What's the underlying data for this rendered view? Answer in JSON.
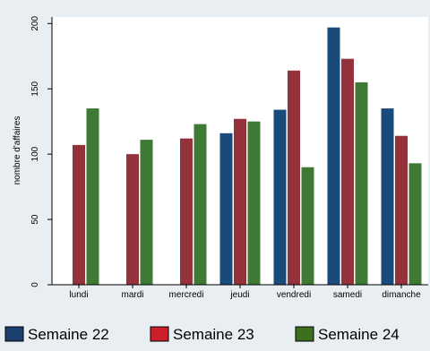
{
  "chart_data": {
    "type": "bar",
    "title": "",
    "xlabel": "",
    "ylabel": "nombre d'affaires",
    "ylim": [
      0,
      205
    ],
    "yticks": [
      0,
      50,
      100,
      150,
      200
    ],
    "categories": [
      "lundi",
      "mardi",
      "mercredi",
      "jeudi",
      "vendredi",
      "samedi",
      "dimanche"
    ],
    "series": [
      {
        "name": "Semaine 22",
        "color": "#1a4a7a",
        "values": [
          null,
          null,
          null,
          116,
          134,
          197,
          135
        ]
      },
      {
        "name": "Semaine 23",
        "color": "#93323b",
        "values": [
          107,
          100,
          112,
          127,
          164,
          173,
          114
        ]
      },
      {
        "name": "Semaine 24",
        "color": "#3e7a34",
        "values": [
          135,
          111,
          123,
          125,
          90,
          155,
          93
        ]
      }
    ],
    "legend": "bottom",
    "grid": false,
    "colors": {
      "background": "#e9eef2",
      "plot_background": "#ffffff",
      "axis": "#000000",
      "legend_swatch_border": "#000000",
      "legend_swatch": [
        "#1b3f6e",
        "#cc1f2b",
        "#3b6e1e"
      ]
    }
  }
}
